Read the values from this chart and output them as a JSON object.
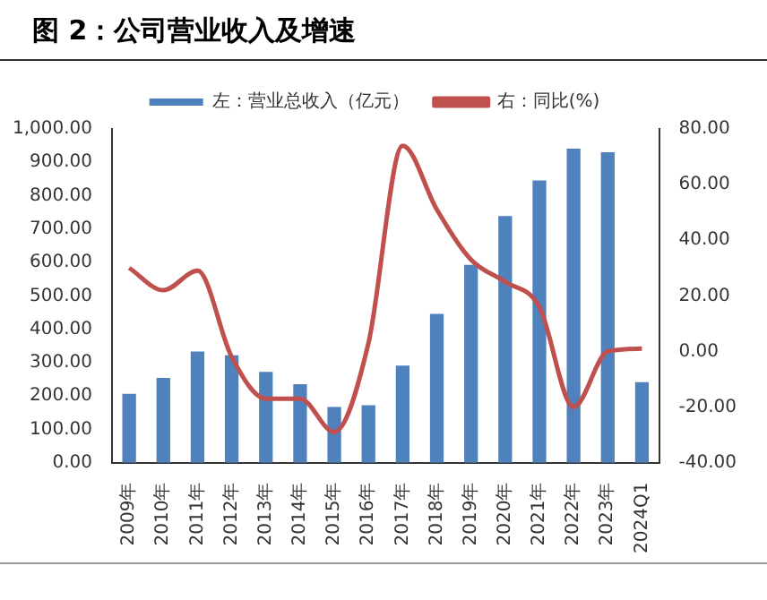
{
  "chart_data": {
    "type": "bar",
    "title": "图 2：公司营业收入及增速",
    "categories": [
      "2009年",
      "2010年",
      "2011年",
      "2012年",
      "2013年",
      "2014年",
      "2015年",
      "2016年",
      "2017年",
      "2018年",
      "2019年",
      "2020年",
      "2021年",
      "2022年",
      "2023年",
      "2024Q1"
    ],
    "series": [
      {
        "name": "左：营业总收入（亿元）",
        "color": "#4f81bd",
        "values": [
          206,
          254,
          333,
          322,
          272,
          235,
          167,
          172,
          291,
          446,
          593,
          739,
          846,
          941,
          930,
          241
        ]
      },
      {
        "name": "右：同比(%)",
        "type": "line",
        "axis": "y2",
        "color": "#c0504d",
        "values": [
          30,
          22,
          29,
          -2,
          -17,
          -17,
          -29,
          3,
          74,
          51,
          33,
          25,
          16,
          -20,
          0,
          1
        ]
      }
    ],
    "ylim": [
      0,
      1000
    ],
    "yticks": [
      {
        "value": 0,
        "label": "0.00"
      },
      {
        "value": 100,
        "label": "100.00"
      },
      {
        "value": 200,
        "label": "200.00"
      },
      {
        "value": 300,
        "label": "300.00"
      },
      {
        "value": 400,
        "label": "400.00"
      },
      {
        "value": 500,
        "label": "500.00"
      },
      {
        "value": 600,
        "label": "600.00"
      },
      {
        "value": 700,
        "label": "700.00"
      },
      {
        "value": 800,
        "label": "800.00"
      },
      {
        "value": 900,
        "label": "900.00"
      },
      {
        "value": 1000,
        "label": "1,000.00"
      }
    ],
    "y2lim": [
      -40,
      80
    ],
    "y2ticks": [
      {
        "value": -40,
        "label": "-40.00"
      },
      {
        "value": -20,
        "label": "-20.00"
      },
      {
        "value": 0,
        "label": "0.00"
      },
      {
        "value": 20,
        "label": "20.00"
      },
      {
        "value": 40,
        "label": "40.00"
      },
      {
        "value": 60,
        "label": "60.00"
      },
      {
        "value": 80,
        "label": "80.00"
      }
    ],
    "grid": false,
    "legend": "top",
    "marker": "none",
    "line_style": "solid"
  }
}
